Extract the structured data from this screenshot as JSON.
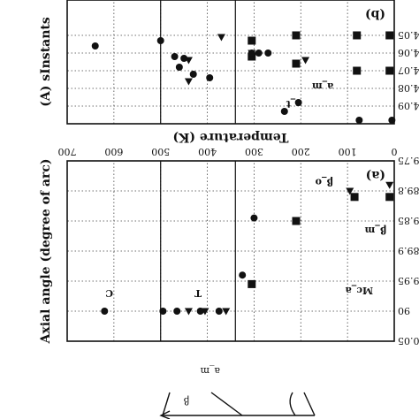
{
  "figure_orientation": "rotated-180",
  "chart_data": [
    {
      "id": "lattice",
      "type": "scatter",
      "panel_label": "(b)",
      "ylabel": "(A) sInstants",
      "xlim": [
        0,
        700
      ],
      "ylim": [
        4.03,
        4.1
      ],
      "yticks": [
        "4.05",
        "4.06",
        "4.07",
        "4.08",
        "4.09"
      ],
      "vertical_lines": [
        340,
        500
      ],
      "annotations": [
        {
          "text": "a_m",
          "x": 153,
          "y": 4.077
        },
        {
          "text": "c_t",
          "x": 215,
          "y": 4.087
        }
      ],
      "series": [
        {
          "name": "square",
          "marker": "square",
          "points": [
            [
              10,
              4.05
            ],
            [
              80,
              4.05
            ],
            [
              210,
              4.05
            ],
            [
              305,
              4.053
            ],
            [
              10,
              4.07
            ],
            [
              80,
              4.07
            ],
            [
              210,
              4.066
            ],
            [
              305,
              4.062
            ]
          ]
        },
        {
          "name": "triangle",
          "marker": "triangle-down",
          "points": [
            [
              190,
              4.064
            ],
            [
              370,
              4.051
            ],
            [
              440,
              4.064
            ],
            [
              440,
              4.076
            ],
            [
              305,
              4.06
            ]
          ]
        },
        {
          "name": "circle",
          "marker": "circle",
          "points": [
            [
              5,
              4.098
            ],
            [
              75,
              4.098
            ],
            [
              235,
              4.093
            ],
            [
              205,
              4.088
            ],
            [
              305,
              4.06
            ],
            [
              290,
              4.06
            ],
            [
              270,
              4.06
            ],
            [
              395,
              4.074
            ],
            [
              430,
              4.072
            ],
            [
              460,
              4.068
            ],
            [
              470,
              4.062
            ],
            [
              450,
              4.063
            ],
            [
              500,
              4.053
            ],
            [
              640,
              4.056
            ]
          ]
        }
      ]
    },
    {
      "id": "axial",
      "type": "scatter",
      "panel_label": "(a)",
      "xlabel": "Temperature (K)",
      "ylabel": "Axial angle (degree of arc)",
      "xlim": [
        0,
        700
      ],
      "ylim": [
        89.75,
        90.05
      ],
      "xticks": [
        "0",
        "100",
        "200",
        "300",
        "400",
        "500",
        "600",
        "700"
      ],
      "yticks": [
        "89.75",
        "89.8",
        "89.85",
        "89.9",
        "89.95",
        "90",
        "90.05"
      ],
      "vertical_lines": [
        340,
        500
      ],
      "phase_labels": [
        {
          "text": "Mc_a",
          "x": 75,
          "y": 89.96
        },
        {
          "text": "T",
          "x": 420,
          "y": 89.965
        },
        {
          "text": "C",
          "x": 610,
          "y": 89.965
        }
      ],
      "annotations": [
        {
          "text": "β_m",
          "x": 40,
          "y": 89.86
        },
        {
          "text": "β_o",
          "x": 150,
          "y": 89.78
        }
      ],
      "series": [
        {
          "name": "square",
          "marker": "square",
          "points": [
            [
              10,
              89.81
            ],
            [
              85,
              89.81
            ],
            [
              210,
              89.85
            ],
            [
              305,
              89.955
            ]
          ]
        },
        {
          "name": "triangle",
          "marker": "triangle-down",
          "points": [
            [
              10,
              89.79
            ],
            [
              95,
              89.8
            ],
            [
              360,
              90.0
            ],
            [
              405,
              90.0
            ],
            [
              440,
              90.0
            ]
          ]
        },
        {
          "name": "circle",
          "marker": "circle",
          "points": [
            [
              300,
              89.845
            ],
            [
              325,
              89.94
            ],
            [
              375,
              90.0
            ],
            [
              415,
              90.0
            ],
            [
              465,
              90.0
            ],
            [
              495,
              90.0
            ],
            [
              620,
              90.0
            ]
          ]
        }
      ]
    }
  ],
  "sketch": {
    "label_am": "a_m",
    "label_beta": "β"
  }
}
